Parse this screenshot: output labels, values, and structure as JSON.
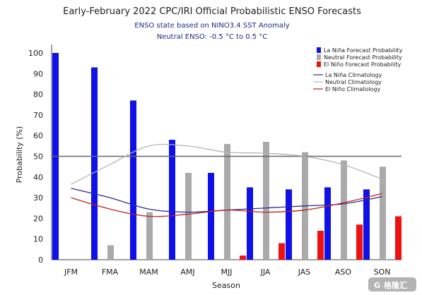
{
  "chart_data": {
    "type": "bar",
    "title": "Early-February 2022 CPC/IRI Official Probabilistic ENSO Forecasts",
    "subtitle_lines": [
      "ENSO state based on NINO3.4 SST Anomaly",
      "Neutral ENSO: -0.5 °C to 0.5 °C"
    ],
    "xlabel": "Season",
    "ylabel": "Probability (%)",
    "ylim": [
      0,
      100
    ],
    "yticks": [
      0,
      10,
      20,
      30,
      40,
      50,
      60,
      70,
      80,
      90,
      100
    ],
    "reference_line": 50,
    "categories": [
      "JFM",
      "FMA",
      "MAM",
      "AMJ",
      "MJJ",
      "JJA",
      "JAS",
      "ASO",
      "SON"
    ],
    "series": [
      {
        "name": "La Niña Forecast Probability",
        "color": "#1010e8",
        "values": [
          100,
          93,
          77,
          58,
          42,
          35,
          34,
          35,
          34
        ]
      },
      {
        "name": "Neutral Forecast Probability",
        "color": "#aaaaaa",
        "values": [
          0,
          7,
          23,
          42,
          56,
          57,
          52,
          48,
          45
        ]
      },
      {
        "name": "El Niño Forecast Probability",
        "color": "#ee1111",
        "values": [
          0,
          0,
          0,
          0,
          2,
          8,
          14,
          17,
          21
        ]
      }
    ],
    "climatology": [
      {
        "name": "La Niña Climatology",
        "color": "#2a2a9a",
        "values": [
          34.5,
          30,
          24.5,
          23,
          24,
          25,
          26,
          27,
          30.5
        ]
      },
      {
        "name": "Neutral Climatology",
        "color": "#b4b4b4",
        "values": [
          36.5,
          46,
          55,
          55,
          52,
          51.5,
          50,
          46,
          39
        ]
      },
      {
        "name": "El Niño Climatology",
        "color": "#c42020",
        "values": [
          30,
          24.5,
          21,
          22,
          24,
          23,
          24,
          27.5,
          32
        ]
      }
    ],
    "legend_position": "top-right"
  },
  "watermark": {
    "text": "格隆汇"
  }
}
